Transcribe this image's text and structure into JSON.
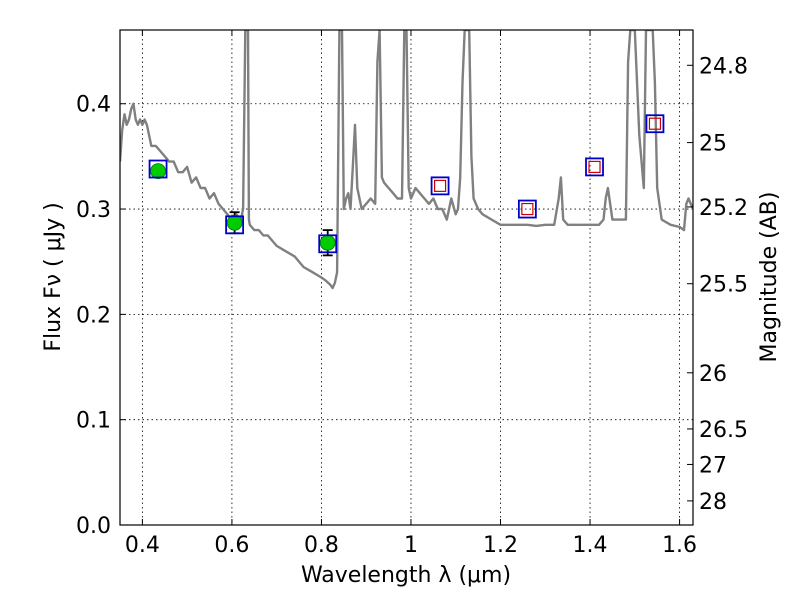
{
  "chart_data": {
    "type": "scatter",
    "xlabel": "Wavelength  λ (μm)",
    "ylabel": "Flux  Fν  ( μJy )",
    "y2label": "Magnitude (AB)",
    "xlim": [
      0.35,
      1.63
    ],
    "ylim": [
      0.0,
      0.47
    ],
    "grid": true,
    "x_ticks": [
      0.4,
      0.6,
      0.8,
      1.0,
      1.2,
      1.4,
      1.6
    ],
    "x_tick_labels": [
      "0.4",
      "0.6",
      "0.8",
      "1",
      "1.2",
      "1.4",
      "1.6"
    ],
    "y_ticks": [
      0.0,
      0.1,
      0.2,
      0.3,
      0.4
    ],
    "y_tick_labels": [
      "0.0",
      "0.1",
      "0.2",
      "0.3",
      "0.4"
    ],
    "magnitude_ticks": [
      {
        "label": "24.8",
        "flux": 0.4365
      },
      {
        "label": "25",
        "flux": 0.3631
      },
      {
        "label": "25.2",
        "flux": 0.302
      },
      {
        "label": "25.5",
        "flux": 0.2291
      },
      {
        "label": "26",
        "flux": 0.1445
      },
      {
        "label": "26.5",
        "flux": 0.0912
      },
      {
        "label": "27",
        "flux": 0.0575
      },
      {
        "label": "28",
        "flux": 0.0229
      }
    ],
    "colors": {
      "model": "#808080",
      "observed_fill": "#00cc00",
      "model_box": "#0000cc",
      "model_flux_box": "#cc0000",
      "errorbar": "#000000",
      "grid": "#000000"
    },
    "model_spectrum": {
      "x": [
        0.35,
        0.355,
        0.36,
        0.365,
        0.37,
        0.375,
        0.38,
        0.385,
        0.39,
        0.395,
        0.4,
        0.405,
        0.41,
        0.42,
        0.43,
        0.44,
        0.45,
        0.46,
        0.47,
        0.48,
        0.49,
        0.5,
        0.51,
        0.52,
        0.53,
        0.54,
        0.55,
        0.56,
        0.57,
        0.58,
        0.59,
        0.6,
        0.61,
        0.62,
        0.625,
        0.63,
        0.632,
        0.634,
        0.636,
        0.638,
        0.64,
        0.65,
        0.66,
        0.67,
        0.68,
        0.7,
        0.72,
        0.74,
        0.76,
        0.78,
        0.8,
        0.81,
        0.82,
        0.825,
        0.83,
        0.835,
        0.84,
        0.843,
        0.846,
        0.85,
        0.855,
        0.86,
        0.865,
        0.87,
        0.875,
        0.88,
        0.885,
        0.89,
        0.9,
        0.91,
        0.92,
        0.925,
        0.93,
        0.935,
        0.94,
        0.95,
        0.96,
        0.97,
        0.98,
        0.985,
        0.99,
        0.995,
        1.0,
        1.01,
        1.02,
        1.03,
        1.04,
        1.05,
        1.06,
        1.07,
        1.08,
        1.09,
        1.1,
        1.105,
        1.11,
        1.115,
        1.12,
        1.125,
        1.13,
        1.135,
        1.14,
        1.15,
        1.16,
        1.18,
        1.2,
        1.22,
        1.24,
        1.26,
        1.28,
        1.3,
        1.32,
        1.33,
        1.335,
        1.34,
        1.35,
        1.36,
        1.38,
        1.4,
        1.42,
        1.43,
        1.435,
        1.44,
        1.45,
        1.46,
        1.47,
        1.48,
        1.485,
        1.49,
        1.495,
        1.5,
        1.51,
        1.52,
        1.525,
        1.53,
        1.535,
        1.54,
        1.545,
        1.55,
        1.56,
        1.58,
        1.6,
        1.61,
        1.615,
        1.62,
        1.63
      ],
      "y": [
        0.345,
        0.375,
        0.39,
        0.38,
        0.385,
        0.395,
        0.4,
        0.385,
        0.38,
        0.385,
        0.38,
        0.385,
        0.38,
        0.36,
        0.36,
        0.355,
        0.35,
        0.345,
        0.345,
        0.335,
        0.335,
        0.34,
        0.325,
        0.33,
        0.32,
        0.32,
        0.31,
        0.315,
        0.305,
        0.3,
        0.295,
        0.29,
        0.295,
        0.29,
        0.3,
        0.47,
        0.47,
        0.47,
        0.47,
        0.29,
        0.285,
        0.28,
        0.28,
        0.275,
        0.275,
        0.265,
        0.26,
        0.255,
        0.245,
        0.24,
        0.235,
        0.232,
        0.228,
        0.225,
        0.23,
        0.24,
        0.47,
        0.47,
        0.47,
        0.3,
        0.31,
        0.315,
        0.3,
        0.34,
        0.38,
        0.32,
        0.31,
        0.3,
        0.305,
        0.31,
        0.305,
        0.44,
        0.47,
        0.33,
        0.325,
        0.32,
        0.315,
        0.31,
        0.31,
        0.47,
        0.47,
        0.32,
        0.31,
        0.32,
        0.315,
        0.31,
        0.305,
        0.31,
        0.3,
        0.3,
        0.29,
        0.31,
        0.295,
        0.3,
        0.33,
        0.42,
        0.47,
        0.47,
        0.47,
        0.35,
        0.31,
        0.3,
        0.295,
        0.29,
        0.285,
        0.285,
        0.285,
        0.285,
        0.284,
        0.285,
        0.285,
        0.31,
        0.33,
        0.29,
        0.285,
        0.285,
        0.285,
        0.285,
        0.285,
        0.29,
        0.31,
        0.32,
        0.29,
        0.29,
        0.29,
        0.29,
        0.44,
        0.47,
        0.47,
        0.47,
        0.37,
        0.32,
        0.47,
        0.47,
        0.47,
        0.47,
        0.42,
        0.32,
        0.29,
        0.285,
        0.283,
        0.28,
        0.305,
        0.31,
        0.3
      ]
    },
    "observed": [
      {
        "x": 0.435,
        "y": 0.336,
        "err": 0.0
      },
      {
        "x": 0.606,
        "y": 0.287,
        "err": 0.01
      },
      {
        "x": 0.814,
        "y": 0.268,
        "err": 0.012
      }
    ],
    "model_photometry_boxes": [
      {
        "x": 0.435,
        "y": 0.338
      },
      {
        "x": 0.606,
        "y": 0.285
      },
      {
        "x": 0.814,
        "y": 0.267
      },
      {
        "x": 1.065,
        "y": 0.322
      },
      {
        "x": 1.26,
        "y": 0.3
      },
      {
        "x": 1.41,
        "y": 0.34
      },
      {
        "x": 1.545,
        "y": 0.381
      }
    ],
    "model_flux_boxes": [
      {
        "x": 1.065,
        "y": 0.322
      },
      {
        "x": 1.26,
        "y": 0.3
      },
      {
        "x": 1.41,
        "y": 0.34
      },
      {
        "x": 1.545,
        "y": 0.381
      }
    ]
  }
}
